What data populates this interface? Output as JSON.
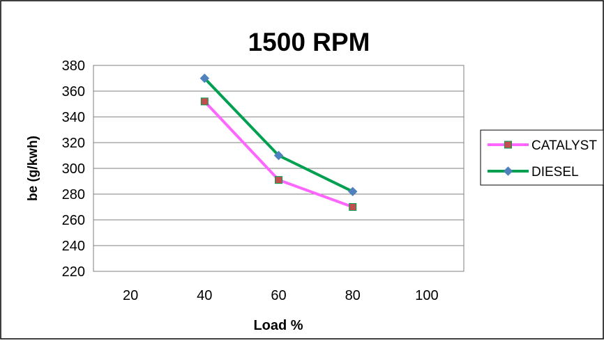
{
  "chart_data": {
    "type": "line",
    "title": "1500 RPM",
    "xlabel": "Load %",
    "ylabel": "be (g/kwh)",
    "categories": [
      "20",
      "40",
      "60",
      "80",
      "100"
    ],
    "ylim": [
      220,
      380
    ],
    "yticks": [
      "220",
      "240",
      "260",
      "280",
      "300",
      "320",
      "340",
      "360",
      "380"
    ],
    "grid": true,
    "legend_position": "right",
    "series": [
      {
        "name": "CATALYST",
        "color": "#ff66ff",
        "marker": "square",
        "marker_fill": "#c0504d",
        "marker_edge": "#00a050",
        "values": [
          null,
          352,
          291,
          270,
          null
        ]
      },
      {
        "name": "DIESEL",
        "color": "#00a050",
        "marker": "diamond",
        "marker_fill": "#4f81bd",
        "marker_edge": "#4f81bd",
        "values": [
          null,
          370,
          310,
          282,
          null
        ]
      }
    ]
  }
}
